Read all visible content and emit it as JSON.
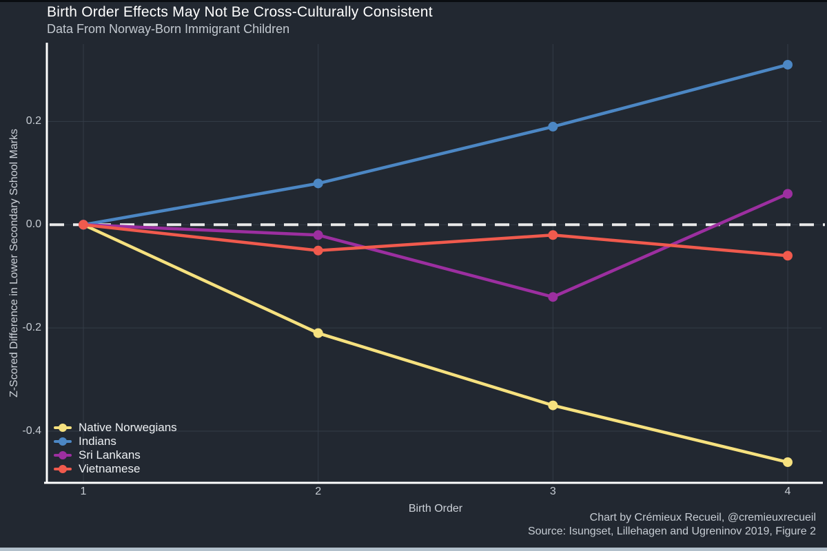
{
  "window": {
    "top_edge_color": "#0a0d11",
    "bottom_bar_color": "#b2c0cb"
  },
  "caption": {
    "line1": "Chart by Crémieux Recueil, @cremieuxrecueil",
    "line2": "Source: Isungset, Lillehagen and Ugreninov 2019, Figure 2"
  },
  "chart_data": {
    "type": "line",
    "title": "Birth Order Effects May Not Be Cross-Culturally Consistent",
    "subtitle": "Data From Norway-Born Immigrant Children",
    "xlabel": "Birth Order",
    "ylabel": "Z-Scored Difference in Lower Secondary School Marks",
    "x": [
      1,
      2,
      3,
      4
    ],
    "x_ticks": [
      "1",
      "2",
      "3",
      "4"
    ],
    "y_ticks": [
      0.2,
      0.0,
      -0.2,
      -0.4
    ],
    "y_tick_labels": [
      "0.2",
      "0.0",
      "-0.2",
      "-0.4"
    ],
    "ylim": [
      -0.5,
      0.35
    ],
    "grid": true,
    "legend_position": "bottom-left",
    "zero_line": {
      "value": 0.0,
      "style": "dashed",
      "color": "#e9e9e9"
    },
    "series": [
      {
        "name": "Native Norwegians",
        "color": "#f6e17f",
        "values": [
          0.0,
          -0.21,
          -0.35,
          -0.46
        ]
      },
      {
        "name": "Indians",
        "color": "#4c87c4",
        "values": [
          0.0,
          0.08,
          0.19,
          0.31
        ]
      },
      {
        "name": "Sri Lankans",
        "color": "#9c2fa0",
        "values": [
          0.0,
          -0.02,
          -0.14,
          0.06
        ]
      },
      {
        "name": "Vietnamese",
        "color": "#f05a4d",
        "values": [
          0.0,
          -0.05,
          -0.02,
          -0.06
        ]
      }
    ],
    "background": "#222831",
    "grid_color": "#343c47",
    "axis_color": "#ffffff",
    "text_color": "#c6ccd3"
  }
}
